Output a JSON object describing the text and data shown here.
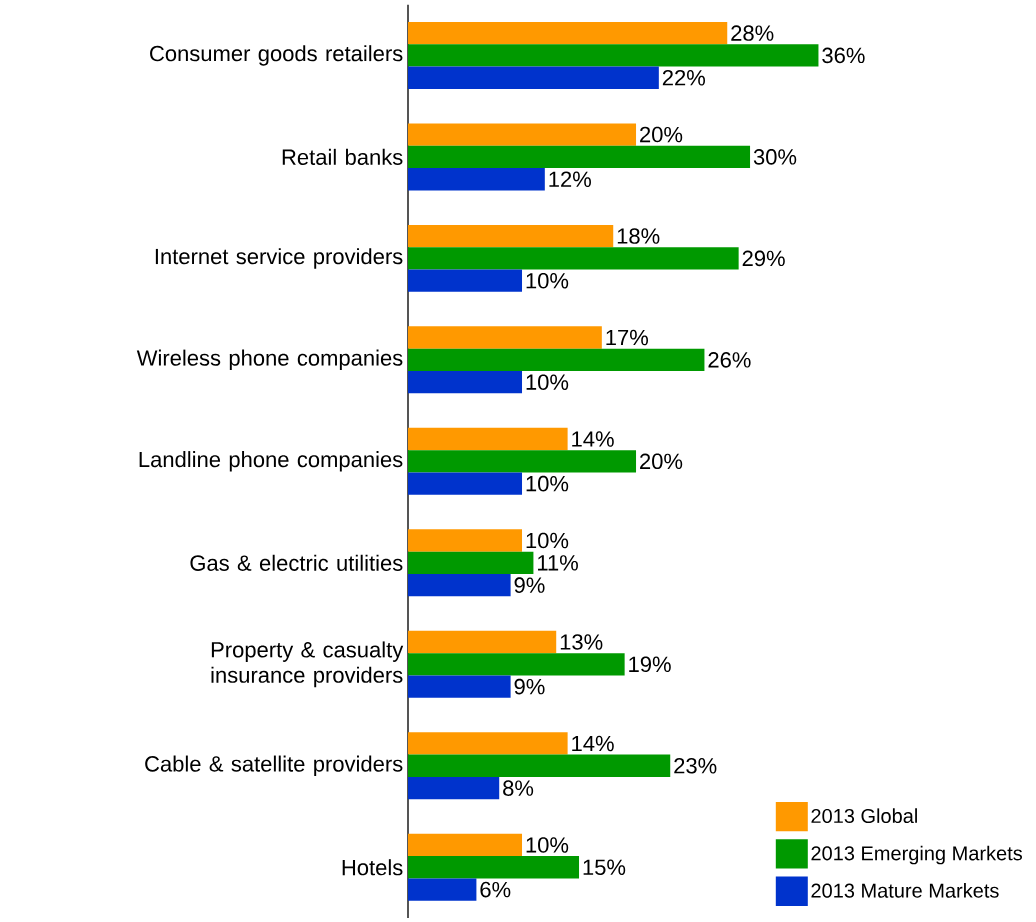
{
  "chart_data": {
    "type": "bar",
    "orientation": "horizontal",
    "legend": "bottom right",
    "categories": [
      "Consumer goods retailers",
      "Retail banks",
      "Internet service providers",
      "Wireless phone companies",
      "Landline phone companies",
      "Gas & electric utilities",
      "Property & casualty insurance providers",
      "Cable & satellite providers",
      "Hotels"
    ],
    "series": [
      {
        "name": "2013 Global",
        "color": "#ff9900",
        "values": [
          28,
          20,
          18,
          17,
          14,
          10,
          13,
          14,
          10
        ],
        "value_labels": [
          "28%",
          "20%",
          "18%",
          "17%",
          "14%",
          "10%",
          "13%",
          "14%",
          "10%"
        ]
      },
      {
        "name": "2013 Emerging Markets",
        "color": "#009900",
        "values": [
          36,
          30,
          29,
          26,
          20,
          11,
          19,
          23,
          15
        ],
        "value_labels": [
          "36%",
          "30%",
          "29%",
          "26%",
          "20%",
          "11%",
          "19%",
          "23%",
          "15%"
        ]
      },
      {
        "name": "2013 Mature Markets",
        "color": "#0033cc",
        "values": [
          22,
          12,
          10,
          10,
          10,
          9,
          9,
          8,
          6
        ],
        "value_labels": [
          "22%",
          "12%",
          "10%",
          "10%",
          "10%",
          "9%",
          "9%",
          "8%",
          "6%"
        ]
      }
    ]
  }
}
